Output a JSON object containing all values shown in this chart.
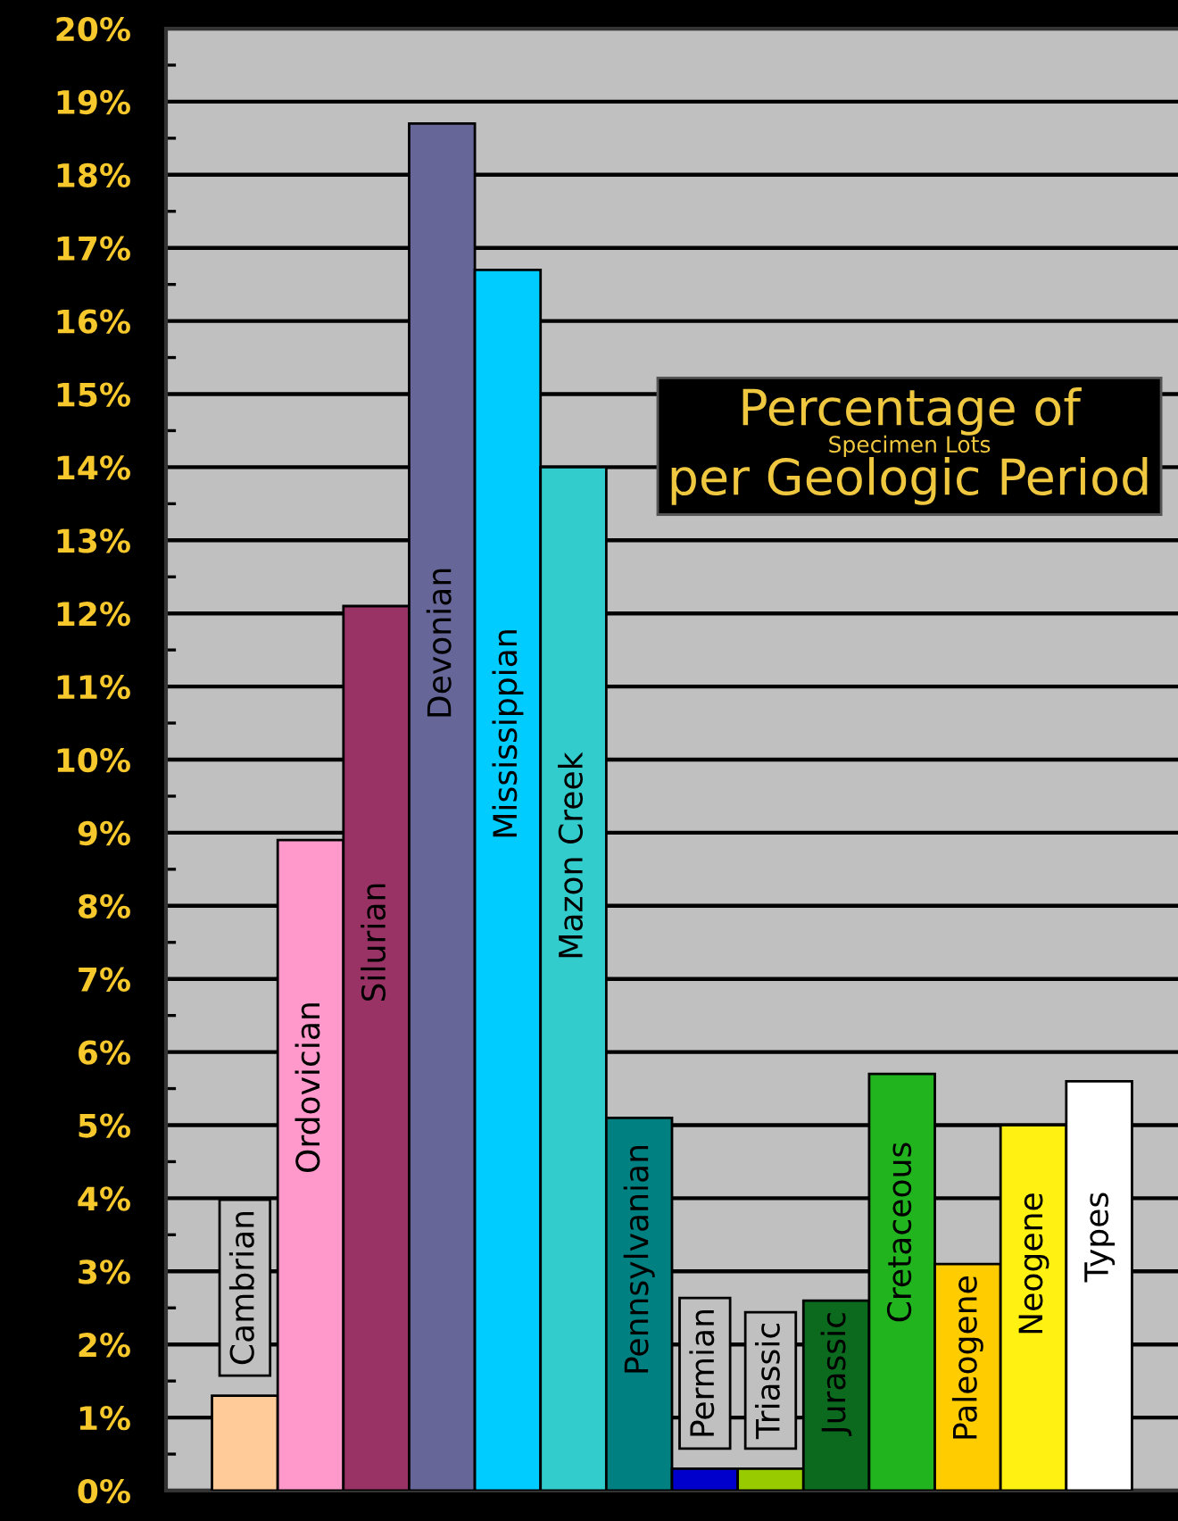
{
  "chart_data": {
    "type": "bar",
    "title": "Percentage of\nSpecimen Lots\nper Geologic Period",
    "categories": [
      "Cambrian",
      "Ordovician",
      "Silurian",
      "Devonian",
      "Mississippian",
      "Mazon Creek",
      "Pennsylvanian",
      "Permian",
      "Triassic",
      "Jurassic",
      "Cretaceous",
      "Paleogene",
      "Neogene",
      "Types"
    ],
    "values": [
      1.3,
      8.9,
      12.1,
      18.7,
      16.7,
      14.0,
      5.1,
      0.3,
      0.3,
      2.6,
      5.7,
      3.1,
      5.0,
      5.6
    ],
    "colors": [
      "#ffcc99",
      "#ff99cc",
      "#993366",
      "#666699",
      "#00ccff",
      "#33cccc",
      "#008080",
      "#0000cc",
      "#99cc00",
      "#0b6a1e",
      "#22b41e",
      "#ffcc00",
      "#fff212",
      "#ffffff"
    ],
    "ylim": [
      0,
      20
    ],
    "yticks": [
      {
        "value": 0,
        "label": "0%"
      },
      {
        "value": 0.5,
        "label": null
      },
      {
        "value": 1,
        "label": "1%"
      },
      {
        "value": 1.5,
        "label": null
      },
      {
        "value": 2,
        "label": "2%"
      },
      {
        "value": 2.5,
        "label": null
      },
      {
        "value": 3,
        "label": "3%"
      },
      {
        "value": 3.5,
        "label": null
      },
      {
        "value": 4,
        "label": "4%"
      },
      {
        "value": 4.5,
        "label": null
      },
      {
        "value": 5,
        "label": "5%"
      },
      {
        "value": 5.5,
        "label": null
      },
      {
        "value": 6,
        "label": "6%"
      },
      {
        "value": 6.5,
        "label": null
      },
      {
        "value": 7,
        "label": "7%"
      },
      {
        "value": 7.5,
        "label": null
      },
      {
        "value": 8,
        "label": "8%"
      },
      {
        "value": 8.5,
        "label": null
      },
      {
        "value": 9,
        "label": "9%"
      },
      {
        "value": 9.5,
        "label": null
      },
      {
        "value": 10,
        "label": "10%"
      },
      {
        "value": 10.5,
        "label": null
      },
      {
        "value": 11,
        "label": "11%"
      },
      {
        "value": 11.5,
        "label": null
      },
      {
        "value": 12,
        "label": "12%"
      },
      {
        "value": 12.5,
        "label": null
      },
      {
        "value": 13,
        "label": "13%"
      },
      {
        "value": 13.5,
        "label": null
      },
      {
        "value": 14,
        "label": "14%"
      },
      {
        "value": 14.5,
        "label": null
      },
      {
        "value": 15,
        "label": "15%"
      },
      {
        "value": 15.5,
        "label": null
      },
      {
        "value": 16,
        "label": "16%"
      },
      {
        "value": 16.5,
        "label": null
      },
      {
        "value": 17,
        "label": "17%"
      },
      {
        "value": 17.5,
        "label": null
      },
      {
        "value": 18,
        "label": "18%"
      },
      {
        "value": 18.5,
        "label": null
      },
      {
        "value": 19,
        "label": "19%"
      },
      {
        "value": 19.5,
        "label": null
      },
      {
        "value": 20,
        "label": "20%"
      }
    ],
    "grid": "y"
  }
}
